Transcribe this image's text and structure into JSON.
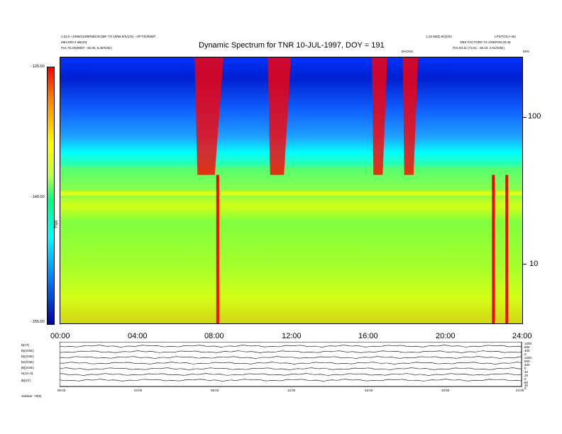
{
  "chart_data": {
    "type": "heatmap",
    "title": "Dynamic Spectrum for TNR 10-JUL-1997, DOY = 191",
    "header_left": [
      "1:33.0 +1996/210/BPMD/4C2BF 7/2 19/96 8/S/1/X) - 4/FT/03/MMT",
      "MEAS03 4 aBoS3",
      "Pos    76.23(08/57; -46.55, 5.30/GSE)"
    ],
    "header_right": [
      "1:19 WED 9/31/02",
      "LPS/TOCA+60",
      "OBS FACTORS TS 2/SEP/20,20:45",
      "Pos    83.11 (73.01, -35.33, 4.61/GSE)"
    ],
    "marker_labels": [
      "DHOSS",
      "MHz"
    ],
    "xlabel": "",
    "x_ticks": [
      "00:00",
      "04:00",
      "08:00",
      "12:00",
      "16:00",
      "20:00",
      "24:00"
    ],
    "xlim_hours": [
      0,
      24
    ],
    "ylabel": "",
    "y_axis_side": "right",
    "y_scale": "log",
    "y_ticks": [
      "100",
      "10"
    ],
    "y_tick_values": [
      100,
      10
    ],
    "ylim_khz": [
      4,
      250
    ],
    "colorbar": {
      "label": "TNR",
      "ticks": [
        "-125.00",
        "-140.00",
        "-155.00"
      ],
      "range": [
        -155,
        -125
      ],
      "colors": [
        "#ff0000",
        "#ffff00",
        "#00ffff",
        "#0000a0"
      ]
    },
    "features": [
      {
        "name": "background-band",
        "freq_range_khz": [
          4,
          45
        ],
        "level": -143
      },
      {
        "name": "plasma-line",
        "time_range_h": [
          0,
          24
        ],
        "freq_khz": 30
      },
      {
        "name": "type-III-burst",
        "time_range_h": [
          7.0,
          8.5
        ],
        "level": -126
      },
      {
        "name": "type-III-burst",
        "time_range_h": [
          10.8,
          12.0
        ],
        "level": -125
      },
      {
        "name": "type-III-burst",
        "time_range_h": [
          16.2,
          17.0
        ],
        "level": -127
      },
      {
        "name": "type-III-burst",
        "time_range_h": [
          17.8,
          18.6
        ],
        "level": -128
      },
      {
        "name": "impulsive-spike",
        "time_h": 8.2,
        "level": -125
      },
      {
        "name": "impulsive-spike",
        "time_h": 22.5,
        "level": -125
      },
      {
        "name": "impulsive-spike",
        "time_h": 23.2,
        "level": -125
      }
    ]
  },
  "bottom_panel": {
    "row_labels": [
      "B(nT)",
      "Bx(GSE)",
      "By(GSE)",
      "Bz(GSE)",
      "|B|(GSE)",
      "N(cm-3)",
      "|B|(nT)"
    ],
    "right_scale": [
      "1200",
      "800",
      "400",
      "0",
      "1200",
      "800",
      "400",
      "0",
      "40",
      "20",
      "0",
      "80",
      "40",
      "0"
    ],
    "x_ticks": [
      "00:00",
      "04:00",
      "08:00",
      "12:00",
      "16:00",
      "20:00",
      "24:00"
    ],
    "footer": "Sidebar: 78(9)"
  }
}
